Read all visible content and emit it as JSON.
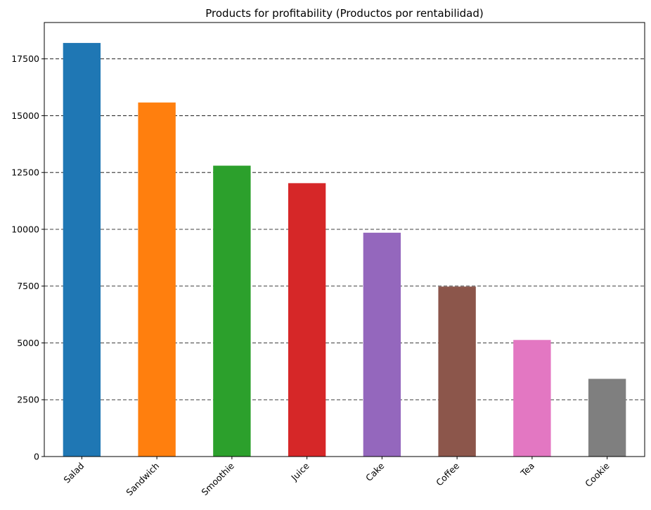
{
  "chart_data": {
    "type": "bar",
    "title": "Products for profitability (Productos por rentabilidad)",
    "xlabel": "",
    "ylabel": "",
    "categories": [
      "Salad",
      "Sandwich",
      "Smoothie",
      "Juice",
      "Cake",
      "Coffee",
      "Tea",
      "Cookie"
    ],
    "values": [
      18200,
      15580,
      12800,
      12030,
      9850,
      7480,
      5130,
      3420
    ],
    "colors": [
      "#1f77b4",
      "#ff7f0e",
      "#2ca02c",
      "#d62728",
      "#9467bd",
      "#8c564b",
      "#e377c2",
      "#7f7f7f"
    ],
    "ylim": [
      0,
      19100
    ],
    "yticks": [
      0,
      2500,
      5000,
      7500,
      10000,
      12500,
      15000,
      17500
    ],
    "grid": "y-dashed",
    "x_tick_rotation": 45
  }
}
